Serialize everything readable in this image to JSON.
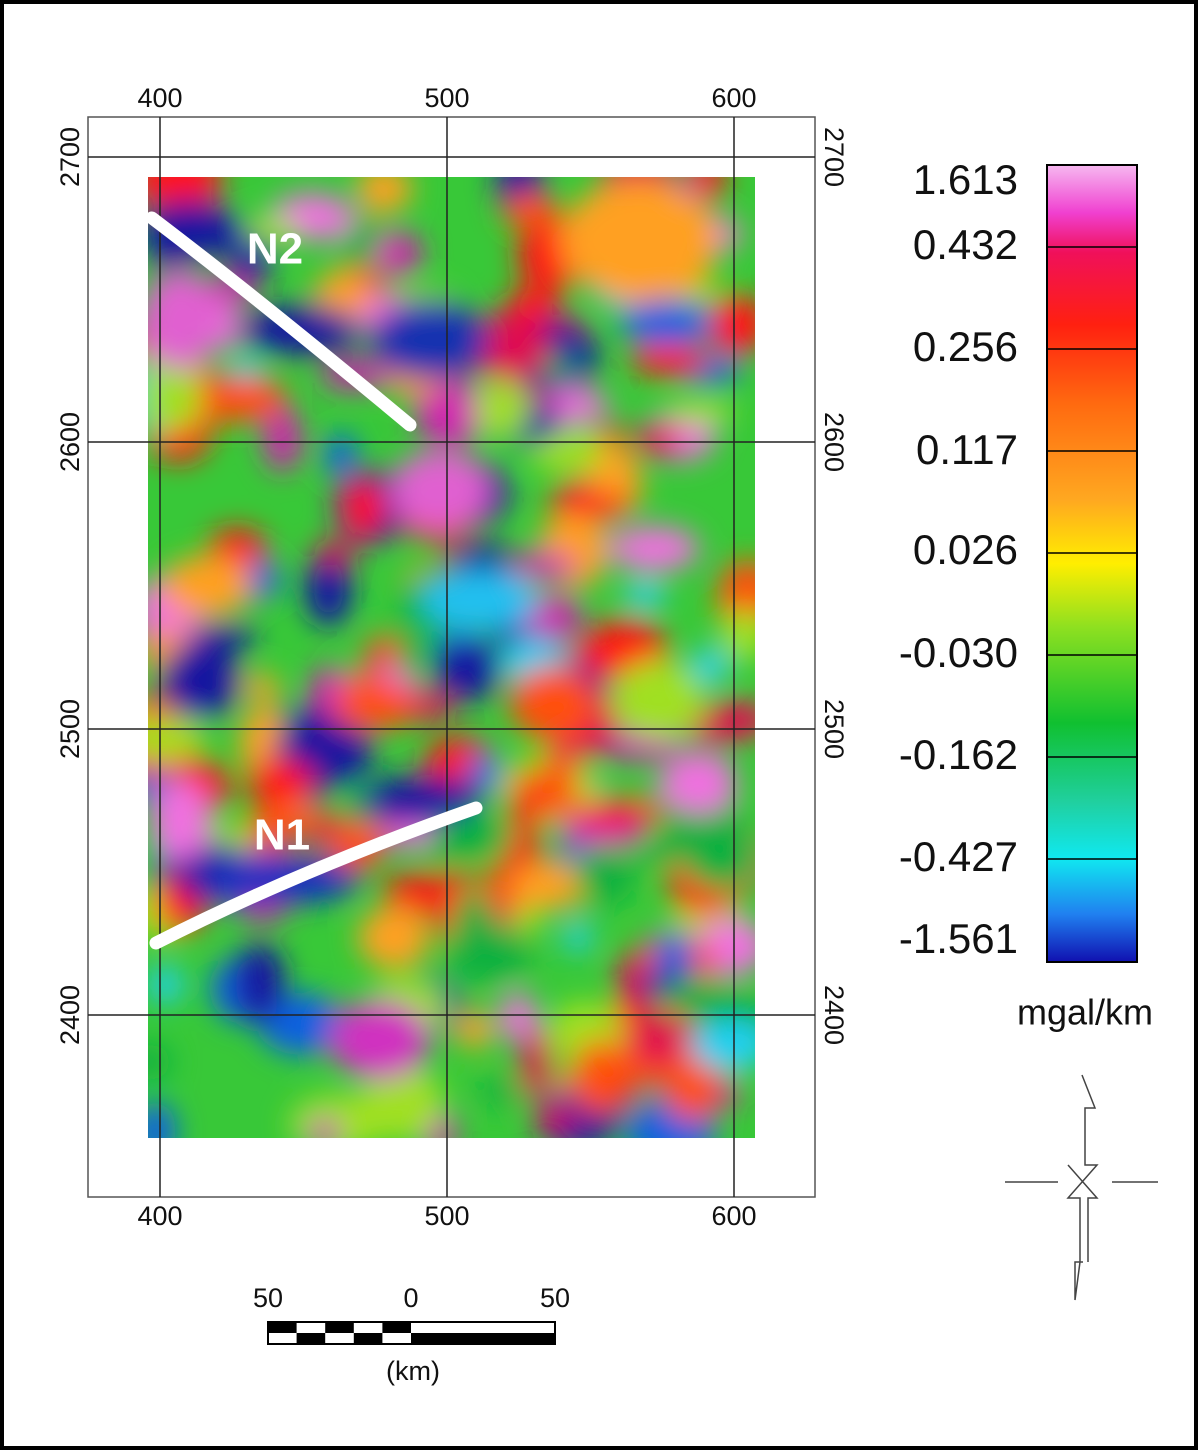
{
  "map": {
    "x_ticks": [
      400,
      500,
      600
    ],
    "y_ticks": [
      2700,
      2600,
      2500,
      2400
    ],
    "annotations": [
      "N2",
      "N1"
    ],
    "colorbar": {
      "labels": [
        "1.613",
        "0.432",
        "0.256",
        "0.117",
        "0.026",
        "-0.030",
        "-0.162",
        "-0.427",
        "-1.561"
      ],
      "unit": "mgal/km"
    },
    "scale_bar": {
      "labels": [
        "50",
        "0",
        "50"
      ],
      "unit": "(km)"
    }
  }
}
